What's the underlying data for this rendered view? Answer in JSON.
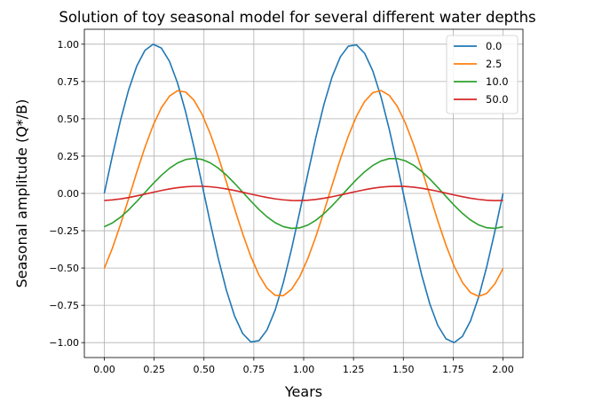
{
  "chart_data": {
    "type": "line",
    "title": "Solution of toy seasonal model for several different water depths",
    "xlabel": "Years",
    "ylabel": "Seasonal amplitude (Q*/B)",
    "xlim": [
      -0.1,
      2.1
    ],
    "ylim": [
      -1.1,
      1.1
    ],
    "grid": true,
    "legend_position": "top-right",
    "x_ticks": [
      "0.00",
      "0.25",
      "0.50",
      "0.75",
      "1.00",
      "1.25",
      "1.50",
      "1.75",
      "2.00"
    ],
    "y_ticks": [
      "1.00",
      "0.75",
      "0.50",
      "0.25",
      "0.00",
      "−0.25",
      "−0.50",
      "−0.75",
      "−1.00"
    ],
    "x": [
      0.0,
      0.041,
      0.082,
      0.122,
      0.163,
      0.204,
      0.245,
      0.286,
      0.327,
      0.367,
      0.408,
      0.449,
      0.49,
      0.531,
      0.571,
      0.612,
      0.653,
      0.694,
      0.735,
      0.776,
      0.816,
      0.857,
      0.898,
      0.939,
      0.98,
      1.02,
      1.061,
      1.102,
      1.143,
      1.184,
      1.224,
      1.265,
      1.306,
      1.347,
      1.388,
      1.429,
      1.469,
      1.51,
      1.551,
      1.592,
      1.633,
      1.673,
      1.714,
      1.755,
      1.796,
      1.837,
      1.878,
      1.918,
      1.959,
      2.0
    ],
    "series": [
      {
        "name": "0.0",
        "color": "#1f77b4",
        "amplitude": 1.0,
        "peak_year": 0.25
      },
      {
        "name": "2.5",
        "color": "#ff7f0e",
        "amplitude": 0.69,
        "peak_year": 0.38
      },
      {
        "name": "10.0",
        "color": "#2ca02c",
        "amplitude": 0.235,
        "peak_year": 0.45
      },
      {
        "name": "50.0",
        "color": "#d62728",
        "amplitude": 0.048,
        "peak_year": 0.47
      }
    ]
  }
}
